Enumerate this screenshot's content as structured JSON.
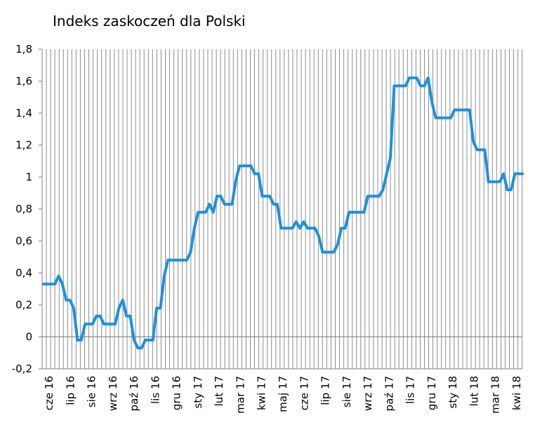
{
  "chart_data": {
    "type": "line",
    "title": "Indeks zaskoczeń dla Polski",
    "xlabel": "",
    "ylabel": "",
    "ylim": [
      -0.2,
      1.8
    ],
    "yticks": [
      "1,8",
      "1,6",
      "1,4",
      "1,2",
      "1",
      "0,8",
      "0,6",
      "0,4",
      "0,2",
      "0",
      "-0,2"
    ],
    "ytick_values": [
      1.8,
      1.6,
      1.4,
      1.2,
      1.0,
      0.8,
      0.6,
      0.4,
      0.2,
      0.0,
      -0.2
    ],
    "xticks": [
      "cze 16",
      "lip 16",
      "sie 16",
      "wrz 16",
      "paź 16",
      "lis 16",
      "gru 16",
      "sty 17",
      "lut 17",
      "mar 17",
      "kwi 17",
      "maj 17",
      "cze 17",
      "lip 17",
      "sie 17",
      "wrz 17",
      "paź 17",
      "lis 17",
      "gru 17",
      "sty 18",
      "lut 18",
      "mar 18",
      "kwi 18"
    ],
    "grid": true,
    "line_color": "#1e90dc",
    "series": [
      {
        "values": [
          0.33,
          0.33,
          0.33,
          0.33,
          0.38,
          0.33,
          0.23,
          0.23,
          0.18,
          -0.02,
          -0.02,
          0.08,
          0.08,
          0.08,
          0.13,
          0.13,
          0.08,
          0.08,
          0.08,
          0.08,
          0.18,
          0.23,
          0.13,
          0.13,
          -0.02,
          -0.07,
          -0.07,
          -0.02,
          -0.02,
          -0.02,
          0.18,
          0.18,
          0.38,
          0.48,
          0.48,
          0.48,
          0.48,
          0.48,
          0.48,
          0.53,
          0.68,
          0.78,
          0.78,
          0.78,
          0.83,
          0.78,
          0.88,
          0.88,
          0.83,
          0.83,
          0.83,
          0.98,
          1.07,
          1.07,
          1.07,
          1.07,
          1.02,
          1.02,
          0.88,
          0.88,
          0.88,
          0.83,
          0.83,
          0.68,
          0.68,
          0.68,
          0.68,
          0.72,
          0.68,
          0.72,
          0.68,
          0.68,
          0.68,
          0.63,
          0.53,
          0.53,
          0.53,
          0.53,
          0.58,
          0.68,
          0.68,
          0.78,
          0.78,
          0.78,
          0.78,
          0.78,
          0.88,
          0.88,
          0.88,
          0.88,
          0.92,
          1.02,
          1.12,
          1.57,
          1.57,
          1.57,
          1.57,
          1.62,
          1.62,
          1.62,
          1.57,
          1.57,
          1.62,
          1.47,
          1.37,
          1.37,
          1.37,
          1.37,
          1.37,
          1.42,
          1.42,
          1.42,
          1.42,
          1.42,
          1.22,
          1.17,
          1.17,
          1.17,
          0.97,
          0.97,
          0.97,
          0.97,
          1.02,
          0.92,
          0.92,
          1.02,
          1.02,
          1.02
        ]
      }
    ]
  }
}
